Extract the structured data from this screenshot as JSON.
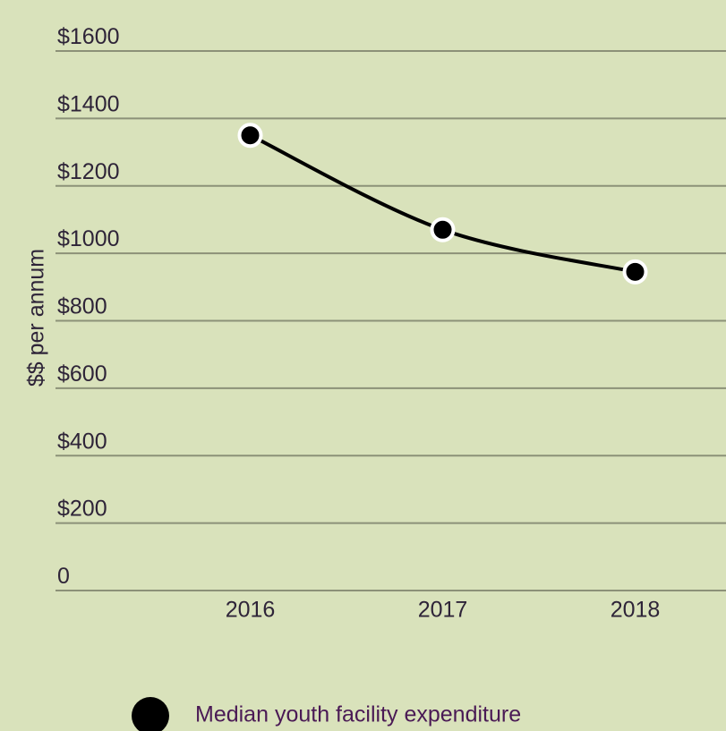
{
  "chart_data": {
    "type": "line",
    "y_label": "$$ per annum",
    "categories": [
      "2016",
      "2017",
      "2018"
    ],
    "series": [
      {
        "name": "Median youth facility expenditure",
        "color": "#000000",
        "values": [
          1350,
          1070,
          945
        ]
      }
    ],
    "ylim": [
      0,
      1600
    ],
    "yticks": [
      0,
      {
        "value": 200,
        "label": "$200"
      },
      {
        "value": 400,
        "label": "$400"
      },
      {
        "value": 600,
        "label": "$600"
      },
      {
        "value": 800,
        "label": "$800"
      },
      {
        "value": 1000,
        "label": "$1000"
      },
      {
        "value": 1200,
        "label": "$1200"
      },
      {
        "value": 1400,
        "label": "$1400"
      },
      {
        "value": 1600,
        "label": "$1600"
      }
    ],
    "grid": true
  }
}
